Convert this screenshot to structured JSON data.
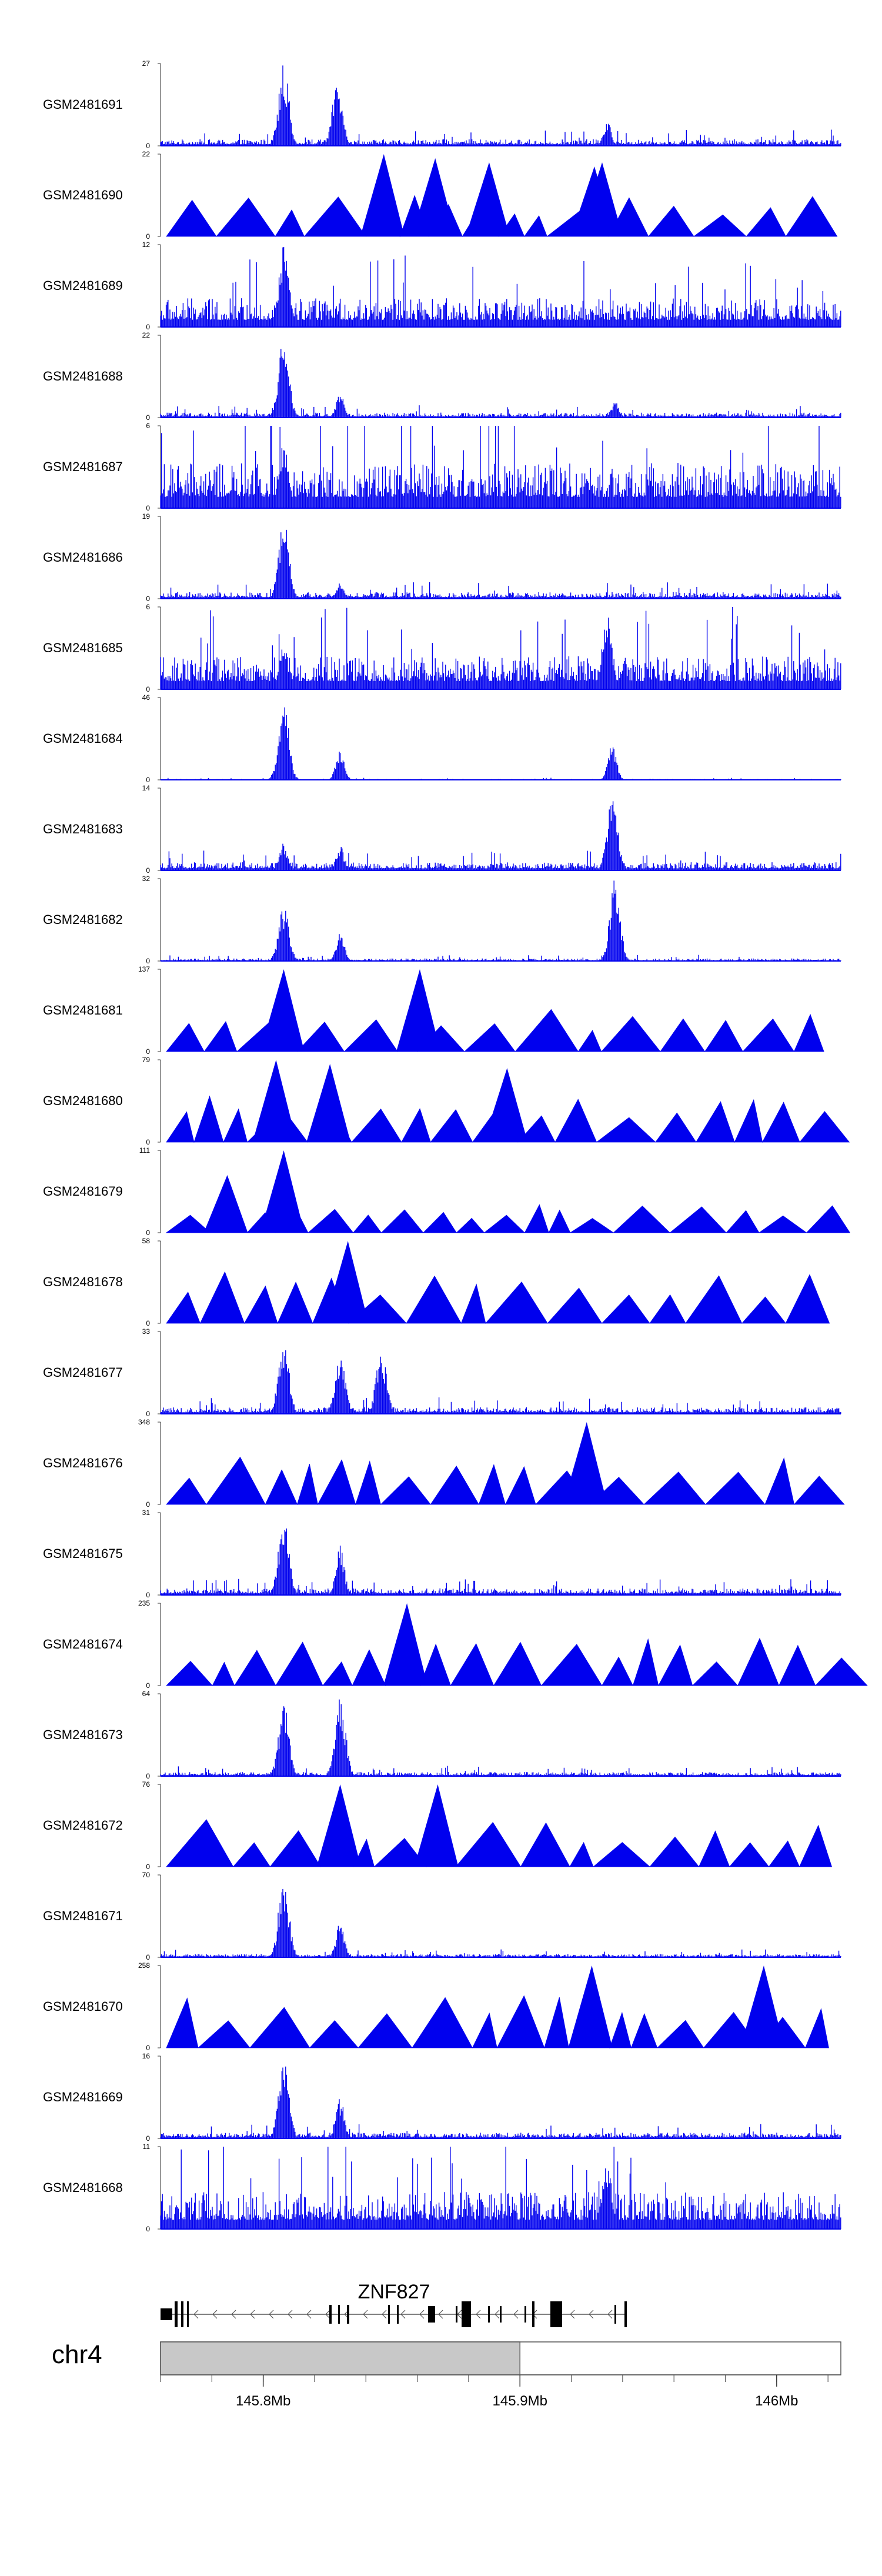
{
  "chart_data": {
    "type": "area",
    "title": "",
    "chromosome": "chr4",
    "gene": {
      "name": "ZNF827",
      "strand": "-"
    },
    "xlim_mb": [
      145.76,
      146.025
    ],
    "ticks_mb": [
      145.8,
      145.9,
      146.0
    ],
    "tick_labels": [
      "145.8Mb",
      "145.9Mb",
      "146Mb"
    ],
    "ideogram_highlight_mb": [
      145.76,
      145.9
    ],
    "series_color": "#0000ee",
    "tracks": [
      {
        "name": "GSM2481691",
        "ymax": 27,
        "style": "spiky",
        "peaks_mb": [
          145.808,
          145.829,
          145.934
        ],
        "peak_heights": [
          1.0,
          0.8,
          0.3
        ],
        "background": 0.08
      },
      {
        "name": "GSM2481690",
        "ymax": 22,
        "style": "sparse",
        "peaks_mb": [
          145.847,
          145.867,
          145.888,
          145.929,
          145.932
        ],
        "peak_heights": [
          1.0,
          0.95,
          0.9,
          0.85,
          0.9
        ],
        "background": 0.45
      },
      {
        "name": "GSM2481689",
        "ymax": 12,
        "style": "spiky",
        "peaks_mb": [
          145.808
        ],
        "peak_heights": [
          1.0
        ],
        "background": 0.35
      },
      {
        "name": "GSM2481688",
        "ymax": 22,
        "style": "spiky",
        "peaks_mb": [
          145.808,
          145.83,
          145.937
        ],
        "peak_heights": [
          1.0,
          0.3,
          0.2
        ],
        "background": 0.06
      },
      {
        "name": "GSM2481687",
        "ymax": 6,
        "style": "spiky",
        "peaks_mb": [
          145.808
        ],
        "peak_heights": [
          0.8
        ],
        "background": 0.55
      },
      {
        "name": "GSM2481686",
        "ymax": 19,
        "style": "spiky",
        "peaks_mb": [
          145.808,
          145.83
        ],
        "peak_heights": [
          1.0,
          0.2
        ],
        "background": 0.08
      },
      {
        "name": "GSM2481685",
        "ymax": 6,
        "style": "spiky",
        "peaks_mb": [
          145.808,
          145.934
        ],
        "peak_heights": [
          0.6,
          0.9
        ],
        "background": 0.4
      },
      {
        "name": "GSM2481684",
        "ymax": 46,
        "style": "spiky",
        "peaks_mb": [
          145.808,
          145.83,
          145.936
        ],
        "peak_heights": [
          1.0,
          0.4,
          0.45
        ],
        "background": 0.01
      },
      {
        "name": "GSM2481683",
        "ymax": 14,
        "style": "spiky",
        "peaks_mb": [
          145.808,
          145.83,
          145.936
        ],
        "peak_heights": [
          0.35,
          0.3,
          1.0
        ],
        "background": 0.1
      },
      {
        "name": "GSM2481682",
        "ymax": 32,
        "style": "spiky",
        "peaks_mb": [
          145.808,
          145.83,
          145.937
        ],
        "peak_heights": [
          0.7,
          0.35,
          1.0
        ],
        "background": 0.03
      },
      {
        "name": "GSM2481681",
        "ymax": 137,
        "style": "sparse",
        "peaks_mb": [
          145.808,
          145.861
        ],
        "peak_heights": [
          1.0,
          1.0
        ],
        "background": 0.45
      },
      {
        "name": "GSM2481680",
        "ymax": 79,
        "style": "sparse",
        "peaks_mb": [
          145.805,
          145.826,
          145.895
        ],
        "peak_heights": [
          1.0,
          0.95,
          0.9
        ],
        "background": 0.5
      },
      {
        "name": "GSM2481679",
        "ymax": 111,
        "style": "sparse",
        "peaks_mb": [
          145.808,
          145.786
        ],
        "peak_heights": [
          1.0,
          0.7
        ],
        "background": 0.3
      },
      {
        "name": "GSM2481678",
        "ymax": 58,
        "style": "sparse",
        "peaks_mb": [
          145.833
        ],
        "peak_heights": [
          1.0
        ],
        "background": 0.55
      },
      {
        "name": "GSM2481677",
        "ymax": 33,
        "style": "spiky",
        "peaks_mb": [
          145.808,
          145.83,
          145.846
        ],
        "peak_heights": [
          1.0,
          0.7,
          0.8
        ],
        "background": 0.08
      },
      {
        "name": "GSM2481676",
        "ymax": 348,
        "style": "sparse",
        "peaks_mb": [
          145.926
        ],
        "peak_heights": [
          1.0
        ],
        "background": 0.5
      },
      {
        "name": "GSM2481675",
        "ymax": 31,
        "style": "spiky",
        "peaks_mb": [
          145.808,
          145.83
        ],
        "peak_heights": [
          1.0,
          0.6
        ],
        "background": 0.08
      },
      {
        "name": "GSM2481674",
        "ymax": 235,
        "style": "sparse",
        "peaks_mb": [
          145.856
        ],
        "peak_heights": [
          1.0
        ],
        "background": 0.5
      },
      {
        "name": "GSM2481673",
        "ymax": 64,
        "style": "spiky",
        "peaks_mb": [
          145.808,
          145.83
        ],
        "peak_heights": [
          0.9,
          1.0
        ],
        "background": 0.05
      },
      {
        "name": "GSM2481672",
        "ymax": 76,
        "style": "sparse",
        "peaks_mb": [
          145.83,
          145.868
        ],
        "peak_heights": [
          1.0,
          1.0
        ],
        "background": 0.5
      },
      {
        "name": "GSM2481671",
        "ymax": 70,
        "style": "spiky",
        "peaks_mb": [
          145.808,
          145.83
        ],
        "peak_heights": [
          1.0,
          0.45
        ],
        "background": 0.04
      },
      {
        "name": "GSM2481670",
        "ymax": 258,
        "style": "sparse",
        "peaks_mb": [
          145.928,
          145.995
        ],
        "peak_heights": [
          1.0,
          1.0
        ],
        "background": 0.55
      },
      {
        "name": "GSM2481669",
        "ymax": 16,
        "style": "spiky",
        "peaks_mb": [
          145.808,
          145.83
        ],
        "peak_heights": [
          1.0,
          0.5
        ],
        "background": 0.07
      },
      {
        "name": "GSM2481668",
        "ymax": 11,
        "style": "spiky",
        "peaks_mb": [
          145.934
        ],
        "peak_heights": [
          0.8
        ],
        "background": 0.45
      }
    ],
    "ymin": 0
  }
}
